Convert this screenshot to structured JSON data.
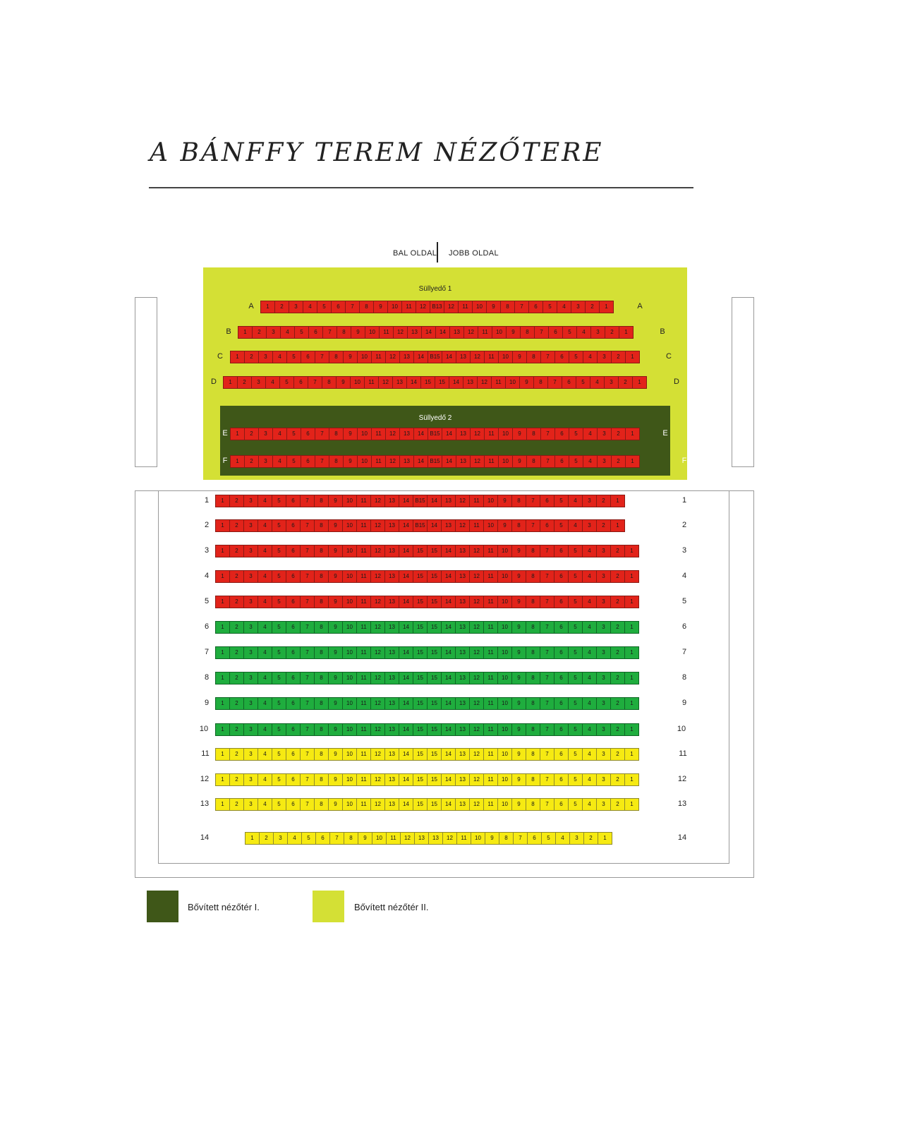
{
  "title": "A BÁNFFY TEREM NÉZŐTERE",
  "sides": {
    "left": "BAL OLDAL",
    "right": "JOBB OLDAL"
  },
  "sections": {
    "sullyedo1": "Süllyedő 1",
    "sullyedo2": "Süllyedő 2"
  },
  "colors": {
    "ext1": "#3f5718",
    "ext2": "#d4e035",
    "red": "#e2231a",
    "green": "#1fad3e",
    "yellow": "#f6ea12"
  },
  "rows": [
    {
      "label": "A",
      "color": "red",
      "seats": [
        "1",
        "2",
        "3",
        "4",
        "5",
        "6",
        "7",
        "8",
        "9",
        "10",
        "11",
        "12",
        "B13",
        "12",
        "11",
        "10",
        "9",
        "8",
        "7",
        "6",
        "5",
        "4",
        "3",
        "2",
        "1"
      ]
    },
    {
      "label": "B",
      "color": "red",
      "seats": [
        "1",
        "2",
        "3",
        "4",
        "5",
        "6",
        "7",
        "8",
        "9",
        "10",
        "11",
        "12",
        "13",
        "14",
        "14",
        "13",
        "12",
        "11",
        "10",
        "9",
        "8",
        "7",
        "6",
        "5",
        "4",
        "3",
        "2",
        "1"
      ]
    },
    {
      "label": "C",
      "color": "red",
      "seats": [
        "1",
        "2",
        "3",
        "4",
        "5",
        "6",
        "7",
        "8",
        "9",
        "10",
        "11",
        "12",
        "13",
        "14",
        "B15",
        "14",
        "13",
        "12",
        "11",
        "10",
        "9",
        "8",
        "7",
        "6",
        "5",
        "4",
        "3",
        "2",
        "1"
      ]
    },
    {
      "label": "D",
      "color": "red",
      "seats": [
        "1",
        "2",
        "3",
        "4",
        "5",
        "6",
        "7",
        "8",
        "9",
        "10",
        "11",
        "12",
        "13",
        "14",
        "15",
        "15",
        "14",
        "13",
        "12",
        "11",
        "10",
        "9",
        "8",
        "7",
        "6",
        "5",
        "4",
        "3",
        "2",
        "1"
      ]
    },
    {
      "label": "E",
      "color": "red",
      "seats": [
        "1",
        "2",
        "3",
        "4",
        "5",
        "6",
        "7",
        "8",
        "9",
        "10",
        "11",
        "12",
        "13",
        "14",
        "B15",
        "14",
        "13",
        "12",
        "11",
        "10",
        "9",
        "8",
        "7",
        "6",
        "5",
        "4",
        "3",
        "2",
        "1"
      ]
    },
    {
      "label": "F",
      "color": "red",
      "seats": [
        "1",
        "2",
        "3",
        "4",
        "5",
        "6",
        "7",
        "8",
        "9",
        "10",
        "11",
        "12",
        "13",
        "14",
        "B15",
        "14",
        "13",
        "12",
        "11",
        "10",
        "9",
        "8",
        "7",
        "6",
        "5",
        "4",
        "3",
        "2",
        "1"
      ]
    },
    {
      "label": "1",
      "color": "red",
      "seats": [
        "1",
        "2",
        "3",
        "4",
        "5",
        "6",
        "7",
        "8",
        "9",
        "10",
        "11",
        "12",
        "13",
        "14",
        "B15",
        "14",
        "13",
        "12",
        "11",
        "10",
        "9",
        "8",
        "7",
        "6",
        "5",
        "4",
        "3",
        "2",
        "1"
      ]
    },
    {
      "label": "2",
      "color": "red",
      "seats": [
        "1",
        "2",
        "3",
        "4",
        "5",
        "6",
        "7",
        "8",
        "9",
        "10",
        "11",
        "12",
        "13",
        "14",
        "B15",
        "14",
        "13",
        "12",
        "11",
        "10",
        "9",
        "8",
        "7",
        "6",
        "5",
        "4",
        "3",
        "2",
        "1"
      ]
    },
    {
      "label": "3",
      "color": "red",
      "seats": [
        "1",
        "2",
        "3",
        "4",
        "5",
        "6",
        "7",
        "8",
        "9",
        "10",
        "11",
        "12",
        "13",
        "14",
        "15",
        "15",
        "14",
        "13",
        "12",
        "11",
        "10",
        "9",
        "8",
        "7",
        "6",
        "5",
        "4",
        "3",
        "2",
        "1"
      ]
    },
    {
      "label": "4",
      "color": "red",
      "seats": [
        "1",
        "2",
        "3",
        "4",
        "5",
        "6",
        "7",
        "8",
        "9",
        "10",
        "11",
        "12",
        "13",
        "14",
        "15",
        "15",
        "14",
        "13",
        "12",
        "11",
        "10",
        "9",
        "8",
        "7",
        "6",
        "5",
        "4",
        "3",
        "2",
        "1"
      ]
    },
    {
      "label": "5",
      "color": "red",
      "seats": [
        "1",
        "2",
        "3",
        "4",
        "5",
        "6",
        "7",
        "8",
        "9",
        "10",
        "11",
        "12",
        "13",
        "14",
        "15",
        "15",
        "14",
        "13",
        "12",
        "11",
        "10",
        "9",
        "8",
        "7",
        "6",
        "5",
        "4",
        "3",
        "2",
        "1"
      ]
    },
    {
      "label": "6",
      "color": "green",
      "seats": [
        "1",
        "2",
        "3",
        "4",
        "5",
        "6",
        "7",
        "8",
        "9",
        "10",
        "11",
        "12",
        "13",
        "14",
        "15",
        "15",
        "14",
        "13",
        "12",
        "11",
        "10",
        "9",
        "8",
        "7",
        "6",
        "5",
        "4",
        "3",
        "2",
        "1"
      ]
    },
    {
      "label": "7",
      "color": "green",
      "seats": [
        "1",
        "2",
        "3",
        "4",
        "5",
        "6",
        "7",
        "8",
        "9",
        "10",
        "11",
        "12",
        "13",
        "14",
        "15",
        "15",
        "14",
        "13",
        "12",
        "11",
        "10",
        "9",
        "8",
        "7",
        "6",
        "5",
        "4",
        "3",
        "2",
        "1"
      ]
    },
    {
      "label": "8",
      "color": "green",
      "seats": [
        "1",
        "2",
        "3",
        "4",
        "5",
        "6",
        "7",
        "8",
        "9",
        "10",
        "11",
        "12",
        "13",
        "14",
        "15",
        "15",
        "14",
        "13",
        "12",
        "11",
        "10",
        "9",
        "8",
        "7",
        "6",
        "5",
        "4",
        "3",
        "2",
        "1"
      ]
    },
    {
      "label": "9",
      "color": "green",
      "seats": [
        "1",
        "2",
        "3",
        "4",
        "5",
        "6",
        "7",
        "8",
        "9",
        "10",
        "11",
        "12",
        "13",
        "14",
        "15",
        "15",
        "14",
        "13",
        "12",
        "11",
        "10",
        "9",
        "8",
        "7",
        "6",
        "5",
        "4",
        "3",
        "2",
        "1"
      ]
    },
    {
      "label": "10",
      "color": "green",
      "seats": [
        "1",
        "2",
        "3",
        "4",
        "5",
        "6",
        "7",
        "8",
        "9",
        "10",
        "11",
        "12",
        "13",
        "14",
        "15",
        "15",
        "14",
        "13",
        "12",
        "11",
        "10",
        "9",
        "8",
        "7",
        "6",
        "5",
        "4",
        "3",
        "2",
        "1"
      ]
    },
    {
      "label": "11",
      "color": "yellow",
      "seats": [
        "1",
        "2",
        "3",
        "4",
        "5",
        "6",
        "7",
        "8",
        "9",
        "10",
        "11",
        "12",
        "13",
        "14",
        "15",
        "15",
        "14",
        "13",
        "12",
        "11",
        "10",
        "9",
        "8",
        "7",
        "6",
        "5",
        "4",
        "3",
        "2",
        "1"
      ]
    },
    {
      "label": "12",
      "color": "yellow",
      "seats": [
        "1",
        "2",
        "3",
        "4",
        "5",
        "6",
        "7",
        "8",
        "9",
        "10",
        "11",
        "12",
        "13",
        "14",
        "15",
        "15",
        "14",
        "13",
        "12",
        "11",
        "10",
        "9",
        "8",
        "7",
        "6",
        "5",
        "4",
        "3",
        "2",
        "1"
      ]
    },
    {
      "label": "13",
      "color": "yellow",
      "seats": [
        "1",
        "2",
        "3",
        "4",
        "5",
        "6",
        "7",
        "8",
        "9",
        "10",
        "11",
        "12",
        "13",
        "14",
        "15",
        "15",
        "14",
        "13",
        "12",
        "11",
        "10",
        "9",
        "8",
        "7",
        "6",
        "5",
        "4",
        "3",
        "2",
        "1"
      ]
    },
    {
      "label": "14",
      "color": "yellow",
      "seats": [
        "1",
        "2",
        "3",
        "4",
        "5",
        "6",
        "7",
        "8",
        "9",
        "10",
        "11",
        "12",
        "13",
        "13",
        "12",
        "11",
        "10",
        "9",
        "8",
        "7",
        "6",
        "5",
        "4",
        "3",
        "2",
        "1"
      ]
    }
  ],
  "legend": [
    {
      "label": "Bővített nézőtér I.",
      "color": "#3f5718"
    },
    {
      "label": "Bővített nézőtér II.",
      "color": "#d4e035"
    }
  ]
}
